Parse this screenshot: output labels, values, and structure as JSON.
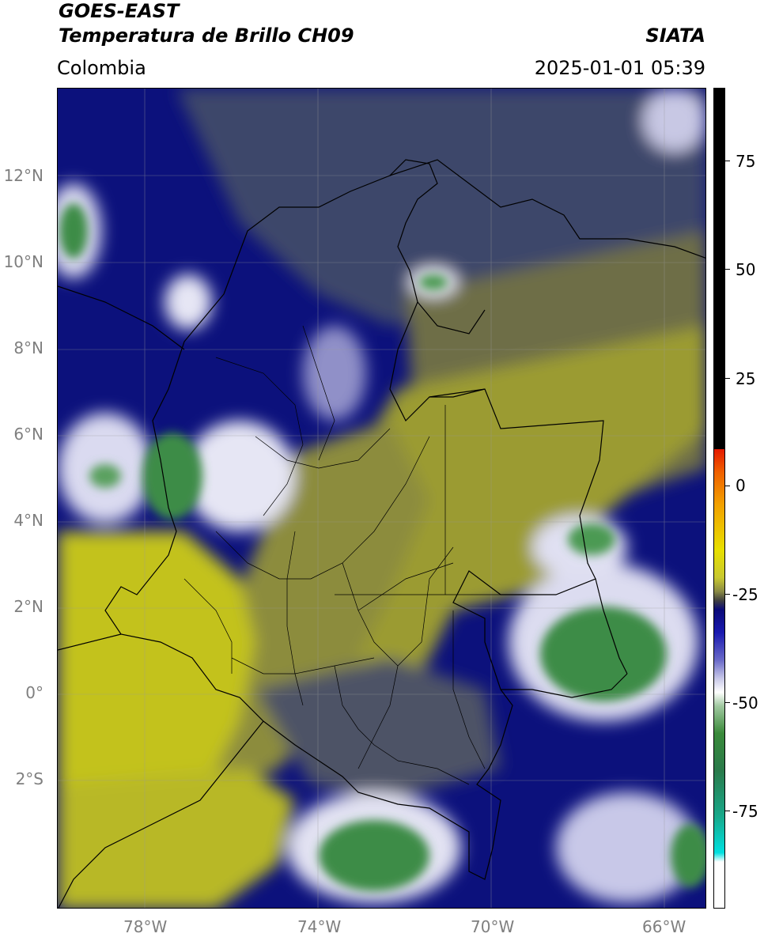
{
  "header": {
    "line1": "GOES-EAST",
    "line2": "Temperatura de Brillo CH09",
    "region": "Colombia",
    "agency": "SIATA",
    "datetime": "2025-01-01 05:39"
  },
  "axes": {
    "lat_labels": [
      "12°N",
      "10°N",
      "8°N",
      "6°N",
      "4°N",
      "2°N",
      "0°",
      "2°S"
    ],
    "lon_labels": [
      "78°W",
      "74°W",
      "70°W",
      "66°W"
    ]
  },
  "colorbar": {
    "ticks": [
      "75",
      "50",
      "25",
      "0",
      "-25",
      "-50",
      "-75"
    ],
    "colors": {
      "top": "#000000",
      "hot": "#e41a00",
      "orange": "#f2a000",
      "yellow": "#e8e000",
      "olive": "#a8a822",
      "gray": "#404040",
      "navy": "#0a0a78",
      "blue": "#1a1ab0",
      "white": "#ffffff",
      "green": "#3a8a3a",
      "teal": "#18a88a",
      "cyan": "#00e0e0"
    }
  },
  "map_colors": {
    "navy": "#0c117c",
    "slate": "#3d466a",
    "olive_gray": "#6e6e46",
    "olive": "#a3a32a",
    "yellow_olive": "#c7c61e",
    "white": "#eaeaf6",
    "green": "#3c8c46",
    "border": "#000000"
  }
}
